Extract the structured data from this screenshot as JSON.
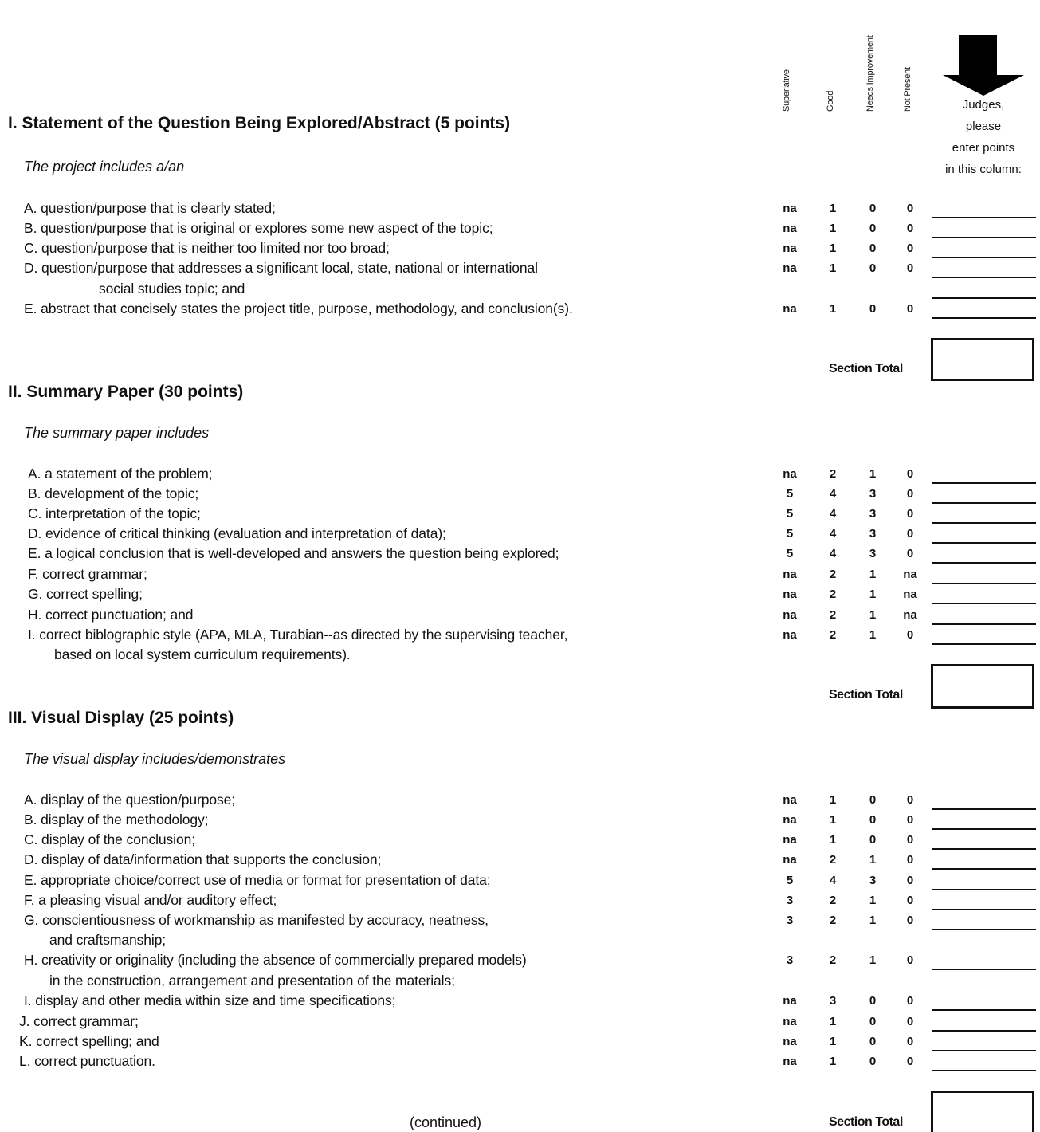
{
  "columns": {
    "superlative": "Superlative",
    "good": "Good",
    "needs_improvement": "Needs Improvement",
    "not_present": "Not Present"
  },
  "judges_note": [
    "Judges,",
    "please",
    "enter points",
    "in this column:"
  ],
  "section_total_label": "Section Total",
  "continued": "(continued)",
  "sections": [
    {
      "title": "I.  Statement of the Question Being Explored/Abstract (5 points)",
      "intro": "The project includes a/an",
      "items": [
        {
          "text": "A. question/purpose that is clearly stated;",
          "scores": [
            "na",
            "1",
            "0",
            "0"
          ]
        },
        {
          "text": "B. question/purpose that is original or explores some new aspect of the topic;",
          "scores": [
            "na",
            "1",
            "0",
            "0"
          ]
        },
        {
          "text": "C. question/purpose that is neither too limited nor too broad;",
          "scores": [
            "na",
            "1",
            "0",
            "0"
          ]
        },
        {
          "text": "D. question/purpose that addresses a significant local, state, national or international",
          "cont": "social studies topic; and",
          "scores": [
            "na",
            "1",
            "0",
            "0"
          ]
        },
        {
          "text": "E. abstract that concisely states the project title, purpose, methodology, and conclusion(s).",
          "scores": [
            "na",
            "1",
            "0",
            "0"
          ]
        }
      ]
    },
    {
      "title": "II.  Summary Paper  (30 points)",
      "intro": "The summary paper includes",
      "items": [
        {
          "text": "A. a statement of the problem;",
          "scores": [
            "na",
            "2",
            "1",
            "0"
          ]
        },
        {
          "text": "B. development of the topic;",
          "scores": [
            "5",
            "4",
            "3",
            "0"
          ]
        },
        {
          "text": "C. interpretation of the topic;",
          "scores": [
            "5",
            "4",
            "3",
            "0"
          ]
        },
        {
          "text": "D. evidence of critical thinking (evaluation and interpretation of data);",
          "scores": [
            "5",
            "4",
            "3",
            "0"
          ]
        },
        {
          "text": "E. a logical conclusion that is well-developed and answers the question being explored;",
          "scores": [
            "5",
            "4",
            "3",
            "0"
          ]
        },
        {
          "text": "F. correct grammar;",
          "scores": [
            "na",
            "2",
            "1",
            "na"
          ]
        },
        {
          "text": "G. correct spelling;",
          "scores": [
            "na",
            "2",
            "1",
            "na"
          ]
        },
        {
          "text": "H. correct punctuation; and",
          "scores": [
            "na",
            "2",
            "1",
            "na"
          ]
        },
        {
          "text": "I.   correct biblographic style (APA, MLA, Turabian--as directed by the supervising teacher,",
          "cont": "based on local system curriculum requirements).",
          "scores": [
            "na",
            "2",
            "1",
            "0"
          ]
        }
      ]
    },
    {
      "title": "III.  Visual Display (25 points)",
      "intro": "The visual display includes/demonstrates",
      "items": [
        {
          "text": "A.  display of the question/purpose;",
          "scores": [
            "na",
            "1",
            "0",
            "0"
          ]
        },
        {
          "text": "B.  display of the methodology;",
          "scores": [
            "na",
            "1",
            "0",
            "0"
          ]
        },
        {
          "text": "C.  display of the conclusion;",
          "scores": [
            "na",
            "1",
            "0",
            "0"
          ]
        },
        {
          "text": "D.  display of data/information that supports the conclusion;",
          "scores": [
            "na",
            "2",
            "1",
            "0"
          ]
        },
        {
          "text": "E.  appropriate choice/correct use of media or format for presentation of data;",
          "scores": [
            "5",
            "4",
            "3",
            "0"
          ]
        },
        {
          "text": "F.  a pleasing visual and/or auditory effect;",
          "scores": [
            "3",
            "2",
            "1",
            "0"
          ]
        },
        {
          "text": "G. conscientiousness of workmanship as manifested by accuracy, neatness,",
          "cont": "and craftsmanship;",
          "scores": [
            "3",
            "2",
            "1",
            "0"
          ]
        },
        {
          "text": "H. creativity or originality (including the absence of commercially prepared models)",
          "cont": "in the construction, arrangement and presentation of the materials;",
          "scores": [
            "3",
            "2",
            "1",
            "0"
          ]
        },
        {
          "text": "I.   display and other media within size and time specifications;",
          "scores": [
            "na",
            "3",
            "0",
            "0"
          ]
        },
        {
          "text": "J.  correct grammar;",
          "scores": [
            "na",
            "1",
            "0",
            "0"
          ]
        },
        {
          "text": "K.  correct spelling; and",
          "scores": [
            "na",
            "1",
            "0",
            "0"
          ]
        },
        {
          "text": "L.  correct punctuation.",
          "scores": [
            "na",
            "1",
            "0",
            "0"
          ]
        }
      ]
    }
  ]
}
